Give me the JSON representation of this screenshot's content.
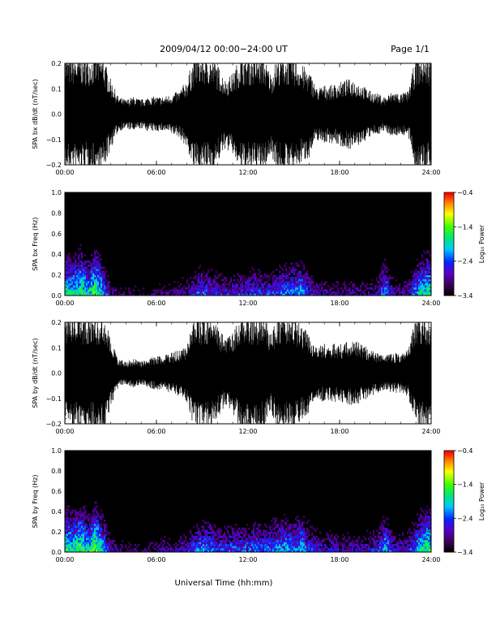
{
  "header": {
    "title": "2009/04/12   00:00−24:00 UT",
    "page": "Page 1/1"
  },
  "x_axis_title": "Universal Time (hh:mm)",
  "chart_data": [
    {
      "type": "line",
      "ylabel": "SPA bx dB/dt (nT/sec)",
      "xlim": [
        0,
        24
      ],
      "ylim": [
        -0.2,
        0.2
      ],
      "xticks": [
        0,
        6,
        12,
        18,
        24
      ],
      "xtick_labels": [
        "00:00",
        "06:00",
        "12:00",
        "18:00",
        "24:00"
      ],
      "yticks": [
        -0.2,
        -0.1,
        0.0,
        0.1,
        0.2
      ],
      "ytick_labels": [
        "−0.2",
        "−0.1",
        "0.0",
        "0.1",
        "0.2"
      ],
      "envelope": {
        "hours": [
          0,
          0.5,
          1,
          1.5,
          2,
          2.5,
          3,
          3.5,
          4,
          4.5,
          5,
          5.5,
          6,
          6.5,
          7,
          7.5,
          8,
          8.5,
          9,
          9.5,
          10,
          10.5,
          11,
          11.5,
          12,
          12.5,
          13,
          13.5,
          14,
          14.5,
          15,
          15.5,
          16,
          16.5,
          17,
          17.5,
          18,
          18.5,
          19,
          19.5,
          20,
          20.5,
          21,
          21.5,
          22,
          22.5,
          23,
          23.5,
          24
        ],
        "amplitude": [
          0.2,
          0.2,
          0.2,
          0.2,
          0.2,
          0.2,
          0.12,
          0.06,
          0.05,
          0.06,
          0.05,
          0.06,
          0.06,
          0.06,
          0.07,
          0.08,
          0.12,
          0.2,
          0.2,
          0.2,
          0.17,
          0.12,
          0.14,
          0.2,
          0.2,
          0.2,
          0.2,
          0.14,
          0.2,
          0.2,
          0.2,
          0.17,
          0.15,
          0.09,
          0.1,
          0.1,
          0.11,
          0.12,
          0.12,
          0.1,
          0.08,
          0.07,
          0.06,
          0.08,
          0.07,
          0.08,
          0.2,
          0.2,
          0.2
        ]
      }
    },
    {
      "type": "heatmap",
      "ylabel": "SPA bx Freq (Hz)",
      "xlim": [
        0,
        24
      ],
      "ylim": [
        0,
        1
      ],
      "xticks": [
        0,
        6,
        12,
        18,
        24
      ],
      "xtick_labels": [
        "00:00",
        "06:00",
        "12:00",
        "18:00",
        "24:00"
      ],
      "yticks": [
        0,
        0.2,
        0.4,
        0.6,
        0.8,
        1.0
      ],
      "ytick_labels": [
        "0.0",
        "0.2",
        "0.4",
        "0.6",
        "0.8",
        "1.0"
      ],
      "colorbar": {
        "label": "Log₁₀ Power",
        "range": [
          -3.4,
          -0.4
        ],
        "ticks": [
          -3.4,
          -2.4,
          -1.4,
          -0.4
        ],
        "tick_labels": [
          "−3.4",
          "−2.4",
          "−1.4",
          "−0.4"
        ]
      },
      "activity_by_hour": {
        "hours": [
          0,
          0.5,
          1,
          1.5,
          2,
          2.5,
          3,
          3.5,
          4,
          4.5,
          5,
          5.5,
          6,
          6.5,
          7,
          7.5,
          8,
          8.5,
          9,
          9.5,
          10,
          10.5,
          11,
          11.5,
          12,
          12.5,
          13,
          13.5,
          14,
          14.5,
          15,
          15.5,
          16,
          16.5,
          17,
          17.5,
          18,
          18.5,
          19,
          19.5,
          20,
          20.5,
          21,
          21.5,
          22,
          22.5,
          23,
          23.5,
          24
        ],
        "log10_power_near_0hz": [
          -1.6,
          -1.8,
          -1.5,
          -1.9,
          -1.4,
          -2.0,
          -2.9,
          -3.1,
          -3.2,
          -3.2,
          -3.2,
          -3.2,
          -3.1,
          -3.0,
          -3.0,
          -2.9,
          -2.8,
          -2.5,
          -2.3,
          -2.4,
          -2.6,
          -2.6,
          -2.5,
          -2.5,
          -2.5,
          -2.4,
          -2.5,
          -2.4,
          -2.3,
          -2.2,
          -2.2,
          -2.0,
          -2.5,
          -2.8,
          -2.9,
          -2.9,
          -2.9,
          -2.9,
          -2.9,
          -2.9,
          -2.9,
          -2.7,
          -2.0,
          -2.8,
          -2.9,
          -2.8,
          -2.1,
          -1.7,
          -1.6
        ]
      }
    },
    {
      "type": "line",
      "ylabel": "SPA by dB/dt (nT/sec)",
      "xlim": [
        0,
        24
      ],
      "ylim": [
        -0.2,
        0.2
      ],
      "xticks": [
        0,
        6,
        12,
        18,
        24
      ],
      "xtick_labels": [
        "00:00",
        "06:00",
        "12:00",
        "18:00",
        "24:00"
      ],
      "yticks": [
        -0.2,
        -0.1,
        0.0,
        0.1,
        0.2
      ],
      "ytick_labels": [
        "−0.2",
        "−0.1",
        "0.0",
        "0.1",
        "0.2"
      ],
      "envelope": {
        "hours": [
          0,
          0.5,
          1,
          1.5,
          2,
          2.5,
          3,
          3.5,
          4,
          4.5,
          5,
          5.5,
          6,
          6.5,
          7,
          7.5,
          8,
          8.5,
          9,
          9.5,
          10,
          10.5,
          11,
          11.5,
          12,
          12.5,
          13,
          13.5,
          14,
          14.5,
          15,
          15.5,
          16,
          16.5,
          17,
          17.5,
          18,
          18.5,
          19,
          19.5,
          20,
          20.5,
          21,
          21.5,
          22,
          22.5,
          23,
          23.5,
          24
        ],
        "amplitude": [
          0.2,
          0.2,
          0.2,
          0.2,
          0.2,
          0.2,
          0.12,
          0.05,
          0.04,
          0.05,
          0.04,
          0.05,
          0.06,
          0.06,
          0.07,
          0.08,
          0.1,
          0.2,
          0.2,
          0.2,
          0.16,
          0.12,
          0.14,
          0.2,
          0.2,
          0.2,
          0.2,
          0.14,
          0.2,
          0.2,
          0.2,
          0.16,
          0.14,
          0.09,
          0.1,
          0.1,
          0.1,
          0.11,
          0.11,
          0.1,
          0.08,
          0.07,
          0.06,
          0.07,
          0.07,
          0.08,
          0.2,
          0.2,
          0.2
        ]
      }
    },
    {
      "type": "heatmap",
      "ylabel": "SPA by Freq (Hz)",
      "xlim": [
        0,
        24
      ],
      "ylim": [
        0,
        1
      ],
      "xticks": [
        0,
        6,
        12,
        18,
        24
      ],
      "xtick_labels": [
        "00:00",
        "06:00",
        "12:00",
        "18:00",
        "24:00"
      ],
      "yticks": [
        0,
        0.2,
        0.4,
        0.6,
        0.8,
        1.0
      ],
      "ytick_labels": [
        "0.0",
        "0.2",
        "0.4",
        "0.6",
        "0.8",
        "1.0"
      ],
      "colorbar": {
        "label": "Log₁₀ Power",
        "range": [
          -3.4,
          -0.4
        ],
        "ticks": [
          -3.4,
          -2.4,
          -1.4,
          -0.4
        ],
        "tick_labels": [
          "−3.4",
          "−2.4",
          "−1.4",
          "−0.4"
        ]
      },
      "activity_by_hour": {
        "hours": [
          0,
          0.5,
          1,
          1.5,
          2,
          2.5,
          3,
          3.5,
          4,
          4.5,
          5,
          5.5,
          6,
          6.5,
          7,
          7.5,
          8,
          8.5,
          9,
          9.5,
          10,
          10.5,
          11,
          11.5,
          12,
          12.5,
          13,
          13.5,
          14,
          14.5,
          15,
          15.5,
          16,
          16.5,
          17,
          17.5,
          18,
          18.5,
          19,
          19.5,
          20,
          20.5,
          21,
          21.5,
          22,
          22.5,
          23,
          23.5,
          24
        ],
        "log10_power_near_0hz": [
          -1.5,
          -1.7,
          -1.4,
          -1.8,
          -1.3,
          -1.9,
          -2.8,
          -3.0,
          -3.1,
          -3.1,
          -3.1,
          -3.1,
          -3.0,
          -2.9,
          -2.9,
          -2.8,
          -2.6,
          -2.3,
          -2.1,
          -2.2,
          -2.4,
          -2.4,
          -2.3,
          -2.3,
          -2.3,
          -2.2,
          -2.3,
          -2.2,
          -2.1,
          -2.0,
          -2.1,
          -1.9,
          -2.3,
          -2.6,
          -2.7,
          -2.7,
          -2.7,
          -2.7,
          -2.7,
          -2.7,
          -2.7,
          -2.5,
          -1.9,
          -2.6,
          -2.7,
          -2.6,
          -2.0,
          -1.6,
          -1.5
        ]
      }
    }
  ]
}
